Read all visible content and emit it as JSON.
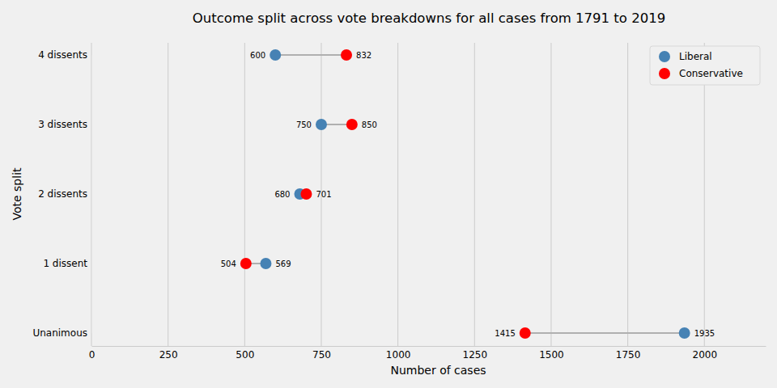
{
  "chart_data": {
    "type": "dumbbell",
    "title": "Outcome split across vote breakdowns for all cases from 1791 to 2019",
    "x_label": "Number of cases",
    "y_label": "Vote split",
    "categories": [
      "Unanimous",
      "1 dissent",
      "2 dissents",
      "3 dissents",
      "4 dissents"
    ],
    "series": [
      {
        "name": "Liberal",
        "color": "#4682b4",
        "values": [
          1935,
          569,
          680,
          750,
          600
        ]
      },
      {
        "name": "Conservative",
        "color": "#ff0000",
        "values": [
          1415,
          504,
          701,
          850,
          832
        ]
      }
    ],
    "xlim": [
      0,
      2200
    ],
    "xticks": [
      0,
      250,
      500,
      750,
      1000,
      1250,
      1500,
      1750,
      2000
    ],
    "orientation": "horizontal",
    "grid": true,
    "legend": "upper right",
    "data_labels": true
  }
}
